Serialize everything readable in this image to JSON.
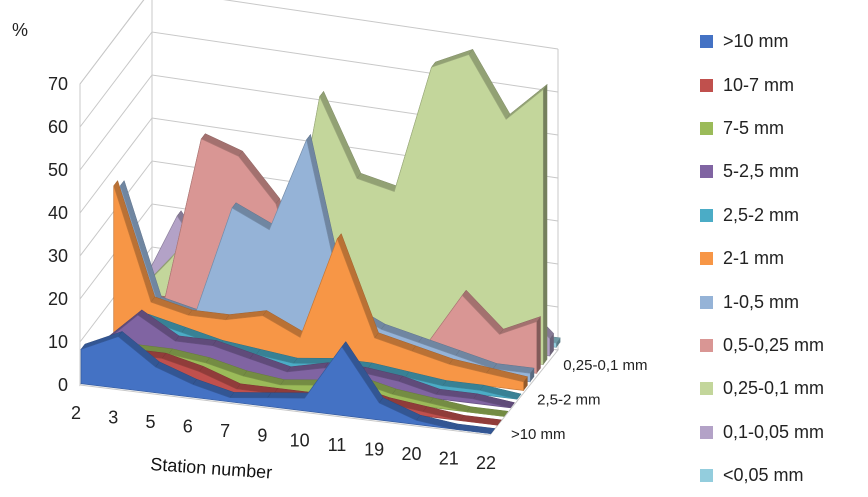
{
  "chart_data": {
    "type": "area",
    "subtype": "3d-area",
    "ylabel": "%",
    "xlabel": "Station number",
    "ylim": [
      0,
      70
    ],
    "yticks": [
      0,
      10,
      20,
      30,
      40,
      50,
      60,
      70
    ],
    "grid": true,
    "legend_position": "right",
    "categories": [
      "2",
      "3",
      "5",
      "6",
      "7",
      "9",
      "10",
      "11",
      "19",
      "20",
      "21",
      "22"
    ],
    "depth_labels": [
      "0,25-0,1 mm",
      "2,5-2 mm",
      ">10 mm"
    ],
    "series": [
      {
        "name": ">10 mm",
        "color": "#4472C4",
        "values": [
          8,
          12,
          6,
          3,
          1,
          2,
          3,
          16,
          4,
          1,
          0,
          0
        ]
      },
      {
        "name": "10-7 mm",
        "color": "#C0504D",
        "values": [
          4,
          6,
          6,
          4,
          1,
          1,
          1,
          4,
          2,
          1,
          0,
          0
        ]
      },
      {
        "name": "7-5 mm",
        "color": "#9BBB59",
        "values": [
          3,
          5,
          5,
          4,
          2,
          1,
          2,
          4,
          2,
          1,
          0,
          0
        ]
      },
      {
        "name": "5-2,5 mm",
        "color": "#8064A2",
        "values": [
          3,
          11,
          6,
          6,
          4,
          2,
          4,
          4,
          3,
          1,
          1,
          0
        ]
      },
      {
        "name": "2,5-2 mm",
        "color": "#4BACC6",
        "values": [
          2,
          8,
          6,
          4,
          3,
          2,
          3,
          3,
          2,
          1,
          1,
          0
        ]
      },
      {
        "name": "2-1 mm",
        "color": "#F79646",
        "values": [
          36,
          10,
          8,
          8,
          10,
          6,
          30,
          8,
          6,
          4,
          3,
          2
        ]
      },
      {
        "name": "1-0,5 mm",
        "color": "#95B3D7",
        "values": [
          34,
          8,
          6,
          32,
          28,
          50,
          12,
          8,
          6,
          4,
          2,
          2
        ]
      },
      {
        "name": "0,5-0,25 mm",
        "color": "#D99694",
        "values": [
          6,
          6,
          45,
          42,
          32,
          4,
          3,
          2,
          3,
          16,
          8,
          12
        ]
      },
      {
        "name": "0,25-0,1 mm",
        "color": "#C3D69B",
        "values": [
          4,
          14,
          26,
          8,
          8,
          56,
          38,
          36,
          66,
          70,
          56,
          64
        ]
      },
      {
        "name": "0,1-0,05 mm",
        "color": "#B3A2C7",
        "values": [
          4,
          22,
          10,
          12,
          8,
          6,
          4,
          4,
          6,
          14,
          12,
          4
        ]
      },
      {
        "name": "<0,05 mm",
        "color": "#93CDDD",
        "values": [
          1,
          6,
          3,
          2,
          1,
          1,
          1,
          1,
          1,
          1,
          1,
          1
        ]
      }
    ]
  }
}
